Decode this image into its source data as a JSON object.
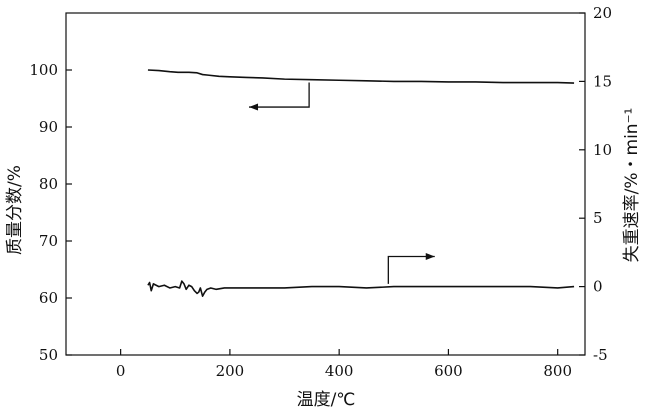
{
  "chart_data": {
    "type": "line",
    "xlabel": "温度/℃",
    "ylabel_left": "质量分数/%",
    "ylabel_right": "失重速率/%・min⁻¹",
    "xlim": [
      -100,
      850
    ],
    "ylim_left": [
      50,
      110
    ],
    "ylim_right": [
      -5,
      20
    ],
    "x_ticks": [
      0,
      200,
      400,
      600,
      800
    ],
    "y_left_ticks": [
      50,
      60,
      70,
      80,
      90,
      100
    ],
    "y_right_ticks": [
      -5,
      0,
      5,
      10,
      15,
      20
    ],
    "grid": false,
    "series": [
      {
        "axis": "left",
        "x": [
          50,
          70,
          90,
          105,
          115,
          125,
          140,
          150,
          160,
          180,
          200,
          230,
          260,
          300,
          350,
          400,
          450,
          500,
          550,
          600,
          650,
          700,
          750,
          800,
          830
        ],
        "y": [
          100.0,
          99.9,
          99.7,
          99.6,
          99.6,
          99.6,
          99.5,
          99.2,
          99.1,
          98.9,
          98.8,
          98.7,
          98.6,
          98.4,
          98.3,
          98.2,
          98.1,
          98.0,
          98.0,
          97.9,
          97.9,
          97.8,
          97.8,
          97.8,
          97.7
        ]
      },
      {
        "axis": "right",
        "x": [
          50,
          53,
          56,
          60,
          70,
          80,
          90,
          100,
          108,
          112,
          116,
          120,
          125,
          130,
          135,
          140,
          143,
          146,
          150,
          154,
          158,
          165,
          175,
          190,
          210,
          250,
          300,
          350,
          400,
          450,
          500,
          550,
          600,
          650,
          700,
          750,
          800,
          830
        ],
        "y": [
          0.1,
          0.3,
          -0.3,
          0.2,
          0.0,
          0.1,
          -0.1,
          0.0,
          -0.1,
          0.4,
          0.2,
          -0.2,
          0.1,
          0.0,
          -0.3,
          -0.5,
          -0.4,
          -0.1,
          -0.7,
          -0.4,
          -0.2,
          -0.1,
          -0.2,
          -0.1,
          -0.1,
          -0.1,
          -0.1,
          0.0,
          0.0,
          -0.1,
          0.0,
          0.0,
          0.0,
          0.0,
          0.0,
          0.0,
          -0.1,
          0.0
        ]
      }
    ],
    "annotations": [
      {
        "type": "arrow",
        "points_to": "left axis",
        "anchor_x": 345,
        "anchor_y_left": 97.8,
        "corner_y_left": 93.5,
        "tip_x": 235
      },
      {
        "type": "arrow",
        "points_to": "right axis",
        "anchor_x": 490,
        "anchor_y_right": 0.2,
        "corner_y_right": 2.2,
        "tip_x": 575
      }
    ]
  }
}
